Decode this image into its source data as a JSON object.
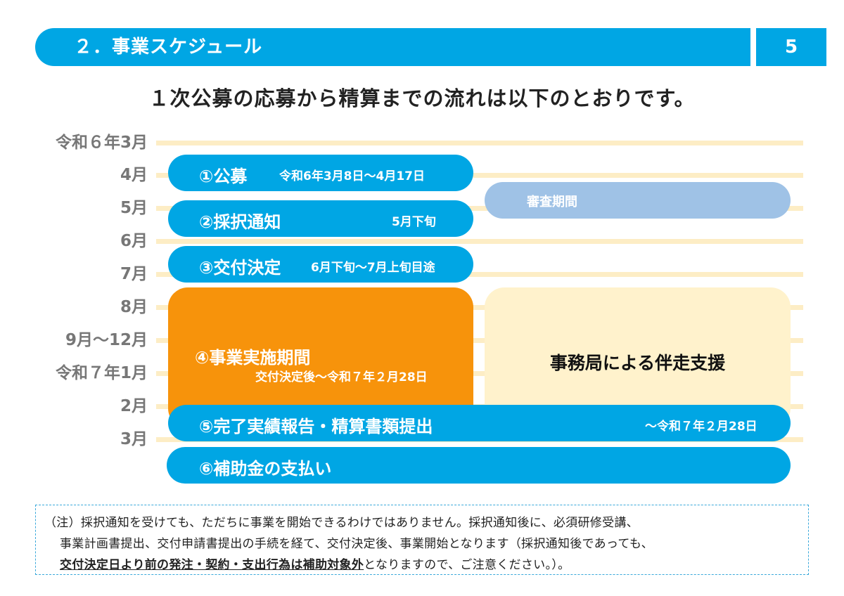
{
  "header": {
    "title": "２．事業スケジュール",
    "page_number": "5"
  },
  "subtitle": "１次公募の応募から精算までの流れは以下のとおりです。",
  "months": [
    "令和６年3月",
    "4月",
    "5月",
    "6月",
    "7月",
    "8月",
    "9月～12月",
    "令和７年1月",
    "2月",
    "3月"
  ],
  "steps": {
    "s1": {
      "label": "①公募",
      "detail": "令和6年3月8日～4月17日"
    },
    "s2": {
      "label": "②採択通知",
      "detail": "5月下旬"
    },
    "s3": {
      "label": "③交付決定",
      "detail": "6月下旬～7月上旬目途"
    },
    "s4": {
      "label": "④事業実施期間",
      "detail": "交付決定後～令和７年２月28日"
    },
    "s5": {
      "label": "⑤完了実績報告・精算書類提出",
      "detail": "～令和７年２月28日"
    },
    "s6": {
      "label": "⑥補助金の支払い"
    }
  },
  "review_period": "審査期間",
  "support": "事務局による伴走支援",
  "note": {
    "line1": "（注）採択通知を受けても、ただちに事業を開始できるわけではありません。採択通知後に、必須研修受講、",
    "line2": "事業計画書提出、交付申請書提出の手続を経て、交付決定後、事業開始となります（採択通知後であっても、",
    "line3_strong": "交付決定日より前の発注・契約・支出行為は補助対象外",
    "line3_rest": "となりますので、ご注意ください。）。"
  }
}
